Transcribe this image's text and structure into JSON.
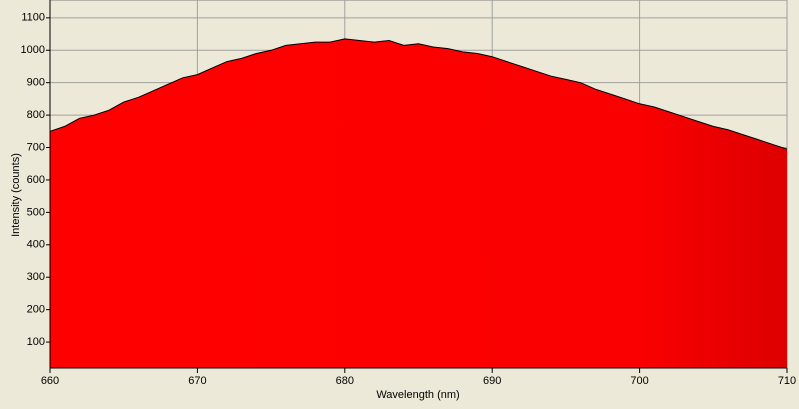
{
  "chart_data": {
    "type": "area",
    "x_label": "Wavelength (nm)",
    "y_label": "Intensity (counts)",
    "x": [
      660,
      661,
      662,
      663,
      664,
      665,
      666,
      667,
      668,
      669,
      670,
      671,
      672,
      673,
      674,
      675,
      676,
      677,
      678,
      679,
      680,
      681,
      682,
      683,
      684,
      685,
      686,
      687,
      688,
      689,
      690,
      691,
      692,
      693,
      694,
      695,
      696,
      697,
      698,
      699,
      700,
      701,
      702,
      703,
      704,
      705,
      706,
      707,
      708,
      709,
      710
    ],
    "values": [
      750,
      765,
      790,
      800,
      815,
      840,
      855,
      875,
      895,
      915,
      925,
      945,
      965,
      975,
      990,
      1000,
      1015,
      1020,
      1025,
      1025,
      1035,
      1030,
      1025,
      1030,
      1015,
      1020,
      1010,
      1005,
      995,
      990,
      980,
      965,
      950,
      935,
      920,
      910,
      900,
      880,
      865,
      850,
      835,
      825,
      810,
      795,
      780,
      765,
      755,
      740,
      725,
      710,
      695
    ],
    "color": "#ff0000",
    "line_color": "#000000",
    "xlim": [
      660,
      710
    ],
    "ylim": [
      20,
      1155
    ],
    "xticks": [
      660,
      670,
      680,
      690,
      700,
      710
    ],
    "yticks": [
      100,
      200,
      300,
      400,
      500,
      600,
      700,
      800,
      900,
      1000,
      1100
    ],
    "grid": true
  }
}
